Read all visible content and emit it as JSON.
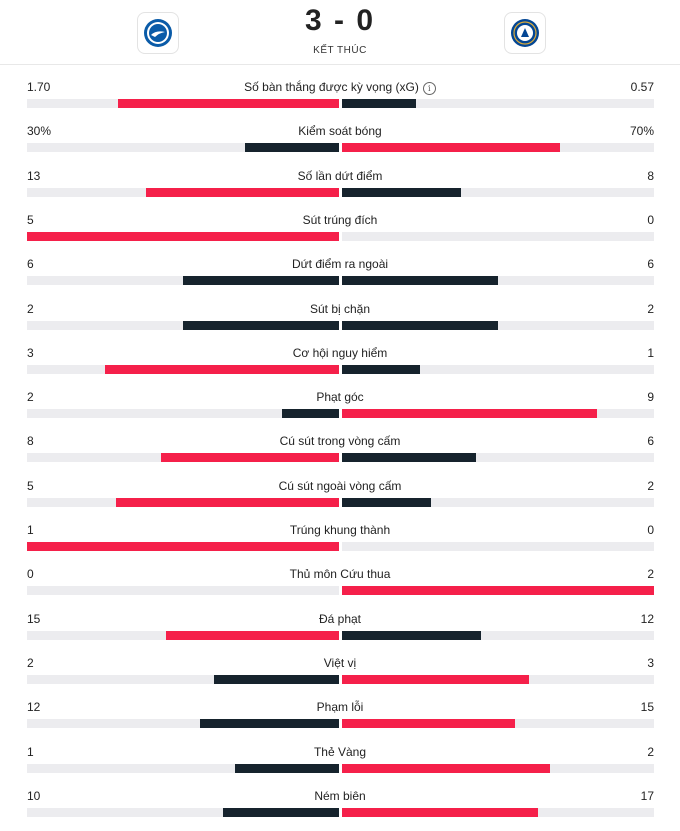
{
  "match": {
    "score": "3 - 0",
    "status": "KẾT THÚC",
    "home_logo": "brighton-crest",
    "away_logo": "chelsea-crest"
  },
  "colors": {
    "red": "#f5204a",
    "dark": "#16232d",
    "track": "#ececef"
  },
  "stats": [
    {
      "label": "Số bàn thắng được kỳ vọng (xG)",
      "home": "1.70",
      "away": "0.57",
      "h": 1.7,
      "a": 0.57,
      "max": 2.4,
      "info": true
    },
    {
      "label": "Kiểm soát bóng",
      "home": "30%",
      "away": "70%",
      "h": 30,
      "a": 70,
      "max": 100
    },
    {
      "label": "Số lần dứt điểm",
      "home": "13",
      "away": "8",
      "h": 13,
      "a": 8,
      "max": 21
    },
    {
      "label": "Sút trúng đích",
      "home": "5",
      "away": "0",
      "h": 5,
      "a": 0,
      "max": 5
    },
    {
      "label": "Dứt điểm ra ngoài",
      "home": "6",
      "away": "6",
      "h": 6,
      "a": 6,
      "max": 12
    },
    {
      "label": "Sút bị chặn",
      "home": "2",
      "away": "2",
      "h": 2,
      "a": 2,
      "max": 4
    },
    {
      "label": "Cơ hội nguy hiểm",
      "home": "3",
      "away": "1",
      "h": 3,
      "a": 1,
      "max": 4
    },
    {
      "label": "Phạt góc",
      "home": "2",
      "away": "9",
      "h": 2,
      "a": 9,
      "max": 11
    },
    {
      "label": "Cú sút trong vòng cấm",
      "home": "8",
      "away": "6",
      "h": 8,
      "a": 6,
      "max": 14
    },
    {
      "label": "Cú sút ngoài vòng cấm",
      "home": "5",
      "away": "2",
      "h": 5,
      "a": 2,
      "max": 7
    },
    {
      "label": "Trúng khung thành",
      "home": "1",
      "away": "0",
      "h": 1,
      "a": 0,
      "max": 1
    },
    {
      "label": "Thủ môn Cứu thua",
      "home": "0",
      "away": "2",
      "h": 0,
      "a": 2,
      "max": 2
    },
    {
      "label": "Đá phạt",
      "home": "15",
      "away": "12",
      "h": 15,
      "a": 12,
      "max": 27
    },
    {
      "label": "Việt vị",
      "home": "2",
      "away": "3",
      "h": 2,
      "a": 3,
      "max": 5
    },
    {
      "label": "Phạm lỗi",
      "home": "12",
      "away": "15",
      "h": 12,
      "a": 15,
      "max": 27
    },
    {
      "label": "Thẻ Vàng",
      "home": "1",
      "away": "2",
      "h": 1,
      "a": 2,
      "max": 3
    },
    {
      "label": "Ném biên",
      "home": "10",
      "away": "17",
      "h": 10,
      "a": 17,
      "max": 27
    }
  ]
}
